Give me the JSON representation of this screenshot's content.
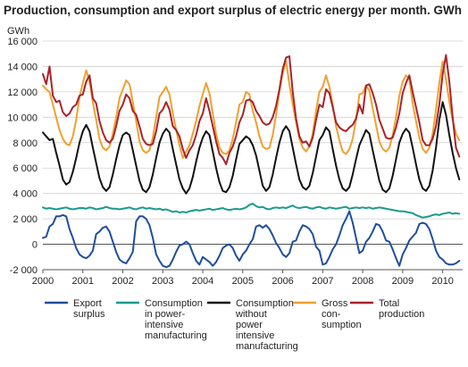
{
  "chart_data": {
    "type": "line",
    "title": "Production, consumption and export surplus of electric energy per month. GWh",
    "ylabel": "GWh",
    "xlabel": "",
    "ylim": [
      -2000,
      16000
    ],
    "yticks": [
      -2000,
      0,
      2000,
      4000,
      6000,
      8000,
      10000,
      12000,
      14000,
      16000
    ],
    "ytick_labels": [
      "-2 000",
      "0",
      "2 000",
      "4 000",
      "6 000",
      "8 000",
      "10 000",
      "12 000",
      "14 000",
      "16 000"
    ],
    "xticks": [
      "2000",
      "2001",
      "2002",
      "2003",
      "2004",
      "2005",
      "2006",
      "2007",
      "2008",
      "2009",
      "2010"
    ],
    "x_start": "2000-01",
    "x_end": "2010-06",
    "grid": true,
    "legend_position": "bottom",
    "series": [
      {
        "name": "Export surplus",
        "color": "#1f4e9c",
        "values": [
          500,
          600,
          1400,
          1600,
          2200,
          2200,
          2300,
          2200,
          1200,
          500,
          -300,
          -800,
          -1000,
          -1100,
          -900,
          -500,
          800,
          1000,
          1300,
          1400,
          1000,
          200,
          -600,
          -1200,
          -1400,
          -1500,
          -1100,
          -600,
          1800,
          2200,
          2200,
          2000,
          1500,
          500,
          -800,
          -1300,
          -1700,
          -1800,
          -1700,
          -1200,
          -600,
          -100,
          0,
          200,
          0,
          -700,
          -1300,
          -1600,
          -1000,
          -1200,
          -1400,
          -1700,
          -1400,
          -900,
          -300,
          -100,
          0,
          -300,
          -900,
          -1300,
          -800,
          -500,
          0,
          400,
          1400,
          1500,
          1300,
          1500,
          1200,
          700,
          100,
          -300,
          -800,
          -1000,
          -700,
          200,
          300,
          1000,
          1500,
          1400,
          1200,
          800,
          -200,
          -500,
          -1600,
          -1500,
          -1000,
          -400,
          0,
          700,
          1500,
          2000,
          2600,
          1700,
          500,
          -700,
          -500,
          200,
          500,
          1000,
          1600,
          1500,
          1000,
          300,
          200,
          -400,
          -1100,
          -1700,
          -800,
          -300,
          300,
          600,
          900,
          1600,
          1700,
          1600,
          1200,
          400,
          -500,
          -1000,
          -1200,
          -1500,
          -1600,
          -1600,
          -1500,
          -1300
        ]
      },
      {
        "name": "Consumption in power-intensive manufacturing",
        "color": "#1a9a8e",
        "values": [
          2900,
          2800,
          2850,
          2800,
          2750,
          2800,
          2850,
          2900,
          2800,
          2750,
          2800,
          2850,
          2850,
          2800,
          2900,
          2850,
          2750,
          2800,
          2850,
          2950,
          2850,
          2800,
          2800,
          2750,
          2800,
          2850,
          2900,
          2800,
          2750,
          2850,
          2900,
          2800,
          2850,
          2800,
          2750,
          2800,
          2700,
          2750,
          2650,
          2550,
          2600,
          2500,
          2550,
          2500,
          2600,
          2650,
          2700,
          2650,
          2700,
          2750,
          2800,
          2700,
          2750,
          2800,
          2850,
          2750,
          2700,
          2750,
          2800,
          2750,
          2800,
          2900,
          3100,
          3200,
          3000,
          2900,
          2950,
          2800,
          2750,
          2850,
          2900,
          2850,
          2900,
          2850,
          2950,
          3050,
          2900,
          2850,
          2900,
          2950,
          2850,
          2800,
          2900,
          2950,
          2850,
          2800,
          2900,
          2850,
          2800,
          2850,
          2900,
          2950,
          2800,
          2850,
          2900,
          2850,
          2900,
          2850,
          2900,
          2800,
          2850,
          2900,
          2850,
          2800,
          2750,
          2700,
          2650,
          2600,
          2600,
          2550,
          2500,
          2450,
          2300,
          2200,
          2100,
          2150,
          2200,
          2300,
          2350,
          2300,
          2400,
          2450,
          2500,
          2400,
          2450,
          2400
        ]
      },
      {
        "name": "Consumption without power intensive manufacturing",
        "color": "#111111",
        "values": [
          8800,
          8500,
          8200,
          8300,
          7200,
          6200,
          5100,
          4700,
          4900,
          5700,
          6800,
          8000,
          8900,
          9400,
          8900,
          7600,
          6400,
          5200,
          4500,
          4200,
          4500,
          5500,
          6700,
          7800,
          8600,
          8800,
          8600,
          7400,
          6200,
          5000,
          4300,
          4100,
          4500,
          5500,
          6800,
          8000,
          8700,
          9100,
          8800,
          7500,
          6300,
          5100,
          4400,
          4000,
          4400,
          5300,
          6500,
          7600,
          8400,
          8900,
          8600,
          7300,
          6000,
          4900,
          4200,
          4100,
          4500,
          5400,
          6700,
          7900,
          8200,
          8500,
          8300,
          7800,
          7000,
          5800,
          4600,
          4200,
          4500,
          5500,
          6800,
          8000,
          8900,
          9300,
          8900,
          7600,
          6300,
          5100,
          4500,
          4300,
          4600,
          5600,
          6900,
          8200,
          8600,
          9200,
          8900,
          7500,
          6200,
          5100,
          4400,
          4200,
          4500,
          5500,
          6700,
          7800,
          8400,
          9000,
          8700,
          7400,
          6200,
          5000,
          4300,
          4100,
          4400,
          5400,
          6700,
          8000,
          8700,
          9100,
          8800,
          7600,
          6300,
          5100,
          4400,
          4200,
          4600,
          5800,
          7600,
          9800,
          11200,
          10200,
          8600,
          7200,
          6000,
          5100
        ]
      },
      {
        "name": "Gross con-sumption",
        "color": "#f0a030",
        "values": [
          12500,
          12200,
          12000,
          11000,
          10000,
          9000,
          8300,
          7900,
          7800,
          8500,
          9800,
          11600,
          12700,
          13700,
          12800,
          11200,
          9800,
          8300,
          7600,
          7400,
          7700,
          8700,
          10000,
          11500,
          12200,
          12900,
          12600,
          11200,
          9700,
          8100,
          7400,
          7200,
          7400,
          8400,
          10000,
          11600,
          12000,
          12400,
          11800,
          10300,
          9000,
          7800,
          6800,
          7300,
          7800,
          8700,
          9700,
          10900,
          11800,
          12700,
          11900,
          10300,
          8700,
          7600,
          7200,
          7100,
          7400,
          8300,
          9600,
          11000,
          11200,
          12000,
          11800,
          10500,
          9600,
          8500,
          7700,
          7500,
          7600,
          8600,
          10200,
          12000,
          13500,
          14400,
          12600,
          11000,
          9600,
          8300,
          7600,
          7300,
          7700,
          8700,
          10500,
          12000,
          12400,
          13300,
          12400,
          11000,
          9300,
          8200,
          7300,
          7100,
          7500,
          8300,
          9800,
          11800,
          11900,
          12500,
          12100,
          10700,
          9400,
          8100,
          7500,
          7300,
          7600,
          8600,
          10000,
          11700,
          12800,
          13300,
          13000,
          11100,
          9700,
          8400,
          7500,
          7200,
          7600,
          8700,
          10600,
          12700,
          14400,
          13000,
          11200,
          9800,
          8700,
          8200
        ]
      },
      {
        "name": "Total production",
        "color": "#a8232a",
        "values": [
          13400,
          12600,
          14000,
          11700,
          11200,
          11300,
          10400,
          10100,
          10300,
          10800,
          11000,
          11700,
          11800,
          12800,
          13300,
          11500,
          11100,
          9700,
          8800,
          8200,
          8000,
          8300,
          9300,
          10500,
          11000,
          11800,
          11500,
          10500,
          10200,
          9300,
          8300,
          7900,
          7800,
          7900,
          8900,
          10300,
          10600,
          11200,
          10600,
          9300,
          9000,
          8500,
          7500,
          6800,
          7400,
          7800,
          8600,
          9700,
          10300,
          11500,
          10500,
          9300,
          8100,
          7100,
          6800,
          6300,
          7200,
          7700,
          8500,
          9600,
          10200,
          11300,
          11400,
          11200,
          10500,
          10100,
          9600,
          9400,
          9500,
          10000,
          10900,
          12200,
          13800,
          14700,
          14800,
          12000,
          9900,
          8500,
          8000,
          8100,
          7700,
          8400,
          9800,
          11000,
          10800,
          12200,
          11900,
          10800,
          9600,
          9200,
          9000,
          8900,
          9200,
          9400,
          9900,
          11000,
          10300,
          12500,
          12600,
          11900,
          11000,
          9800,
          9100,
          8400,
          8300,
          8400,
          9200,
          10300,
          11900,
          12700,
          13300,
          12000,
          10800,
          9600,
          8200,
          7800,
          7800,
          8300,
          9300,
          11000,
          13400,
          14900,
          12800,
          10000,
          7600,
          6900
        ]
      }
    ],
    "legend_labels": [
      [
        "Export",
        "surplus"
      ],
      [
        "Consumption",
        "in power-",
        "intensive",
        "manufacturing"
      ],
      [
        "Consumption",
        "without",
        "power",
        "intensive",
        "manufacturing"
      ],
      [
        "Gross",
        "con-",
        "sumption"
      ],
      [
        "Total",
        "production"
      ]
    ]
  }
}
